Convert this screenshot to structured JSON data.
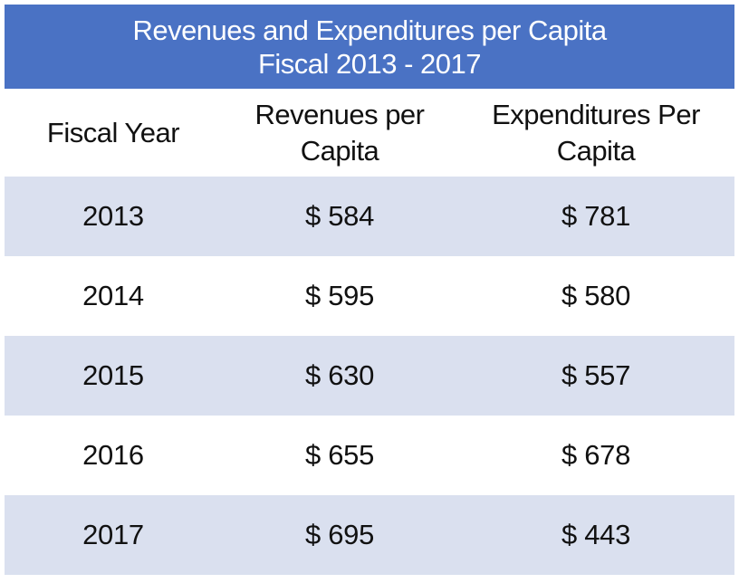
{
  "chart_data": {
    "type": "table",
    "title": "Revenues and Expenditures per Capita",
    "subtitle": "Fiscal 2013 - 2017",
    "columns": [
      "Fiscal Year",
      "Revenues per Capita",
      "Expenditures Per Capita"
    ],
    "column_lines": [
      [
        "Fiscal Year"
      ],
      [
        "Revenues per",
        "Capita"
      ],
      [
        "Expenditures Per",
        "Capita"
      ]
    ],
    "rows": [
      {
        "year": "2013",
        "revenue": "$ 584",
        "expenditure": "$ 781"
      },
      {
        "year": "2014",
        "revenue": "$ 595",
        "expenditure": "$ 580"
      },
      {
        "year": "2015",
        "revenue": "$ 630",
        "expenditure": "$ 557"
      },
      {
        "year": "2016",
        "revenue": "$ 655",
        "expenditure": "$ 678"
      },
      {
        "year": "2017",
        "revenue": "$ 695",
        "expenditure": "$ 443"
      }
    ]
  },
  "colors": {
    "title_bar": "#4a72c4",
    "title_text": "#ffffff",
    "shaded_row": "#dae0ef",
    "plain_row": "#ffffff"
  }
}
